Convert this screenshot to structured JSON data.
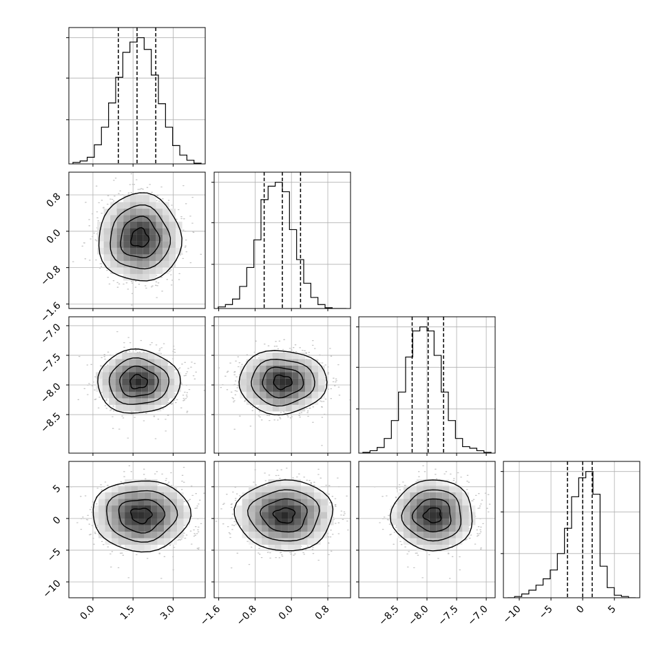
{
  "chart_data": {
    "type": "corner",
    "grid": true,
    "histogram_style": "step",
    "quantile_line_style": "dashed",
    "parameters": [
      {
        "range": [
          -0.9,
          4.2
        ],
        "ticks": [
          "0.0",
          "1.5",
          "3.0"
        ],
        "tick_values": [
          0.0,
          1.5,
          3.0
        ],
        "quantiles": [
          0.95,
          1.65,
          2.35
        ],
        "hist_counts": [
          2,
          4,
          9,
          26,
          50,
          83,
          118,
          152,
          166,
          172,
          156,
          121,
          82,
          50,
          25,
          12,
          5,
          1
        ]
      },
      {
        "range": [
          -1.7,
          1.3
        ],
        "ticks": [
          "-1.6",
          "-0.8",
          "0.0",
          "0.8"
        ],
        "tick_values": [
          -1.6,
          -0.8,
          0.0,
          0.8
        ],
        "quantiles": [
          -0.6,
          -0.2,
          0.2
        ],
        "hist_counts": [
          2,
          5,
          12,
          28,
          52,
          87,
          138,
          155,
          160,
          148,
          100,
          62,
          32,
          14,
          5,
          1,
          0,
          0
        ]
      },
      {
        "range": [
          -9.15,
          -6.85
        ],
        "ticks": [
          "-8.5",
          "-8.0",
          "-7.5",
          "-7.0"
        ],
        "tick_values": [
          -8.5,
          -8.0,
          -7.5,
          -7.0
        ],
        "quantiles": [
          -8.25,
          -7.98,
          -7.72
        ],
        "hist_counts": [
          1,
          3,
          7,
          18,
          40,
          75,
          118,
          150,
          155,
          150,
          120,
          75,
          40,
          18,
          8,
          6,
          3,
          1
        ]
      },
      {
        "range": [
          -12.5,
          9
        ],
        "ticks": [
          "-10",
          "-5",
          "0",
          "5"
        ],
        "tick_values": [
          -10,
          -5,
          0,
          5
        ],
        "quantiles": [
          -2.4,
          0.0,
          1.5
        ],
        "hist_counts": [
          0,
          1,
          3,
          6,
          10,
          15,
          22,
          35,
          55,
          80,
          95,
          100,
          82,
          25,
          8,
          2,
          1,
          0
        ]
      }
    ],
    "pairs": [
      {
        "row": 1,
        "col": 0,
        "center": [
          1.75,
          -0.15
        ],
        "spread": [
          0.72,
          0.45
        ]
      },
      {
        "row": 2,
        "col": 0,
        "center": [
          1.7,
          -7.95
        ],
        "spread": [
          0.72,
          0.25
        ]
      },
      {
        "row": 2,
        "col": 1,
        "center": [
          -0.2,
          -7.95
        ],
        "spread": [
          0.45,
          0.25
        ]
      },
      {
        "row": 3,
        "col": 0,
        "center": [
          1.8,
          0.5
        ],
        "spread": [
          0.85,
          2.6
        ]
      },
      {
        "row": 3,
        "col": 1,
        "center": [
          -0.15,
          0.5
        ],
        "spread": [
          0.5,
          2.6
        ]
      },
      {
        "row": 3,
        "col": 2,
        "center": [
          -7.9,
          0.5
        ],
        "spread": [
          0.32,
          2.6
        ]
      }
    ]
  }
}
